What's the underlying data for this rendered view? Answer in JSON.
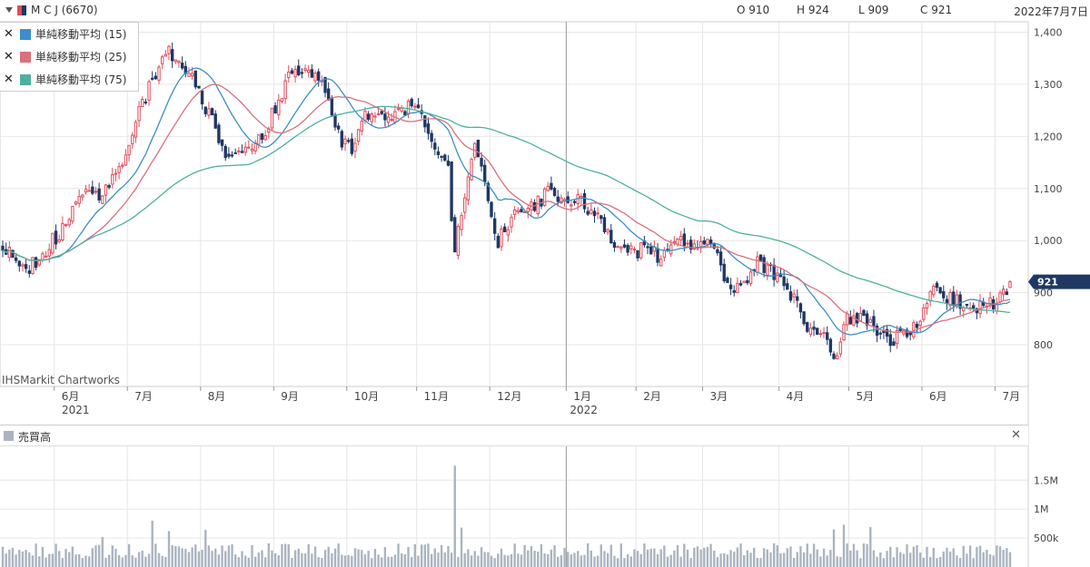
{
  "header": {
    "ticker": "M C J (6670)",
    "open": "O 910",
    "high": "H 924",
    "low": "L 909",
    "close": "C 921",
    "date": "2022年7月7日"
  },
  "legend": [
    {
      "label": "単純移動平均 (15)",
      "color": "#3d8ec9"
    },
    {
      "label": "単純移動平均 (25)",
      "color": "#d9707e"
    },
    {
      "label": "単純移動平均 (75)",
      "color": "#4fb0a0"
    }
  ],
  "watermark": "IHSMarkit Chartworks",
  "price_badge": "921",
  "volume_panel": {
    "title": "売買高",
    "close_icon": "✕"
  },
  "colors": {
    "up": "#e24d5a",
    "down": "#1f3864",
    "grid": "#e6e6e6",
    "badge": "#1f3864"
  },
  "chart_data": {
    "type": "candlestick",
    "price_axis": {
      "ylim": [
        720,
        1420
      ],
      "ticks": [
        800,
        900,
        1000,
        1100,
        1200,
        1300,
        1400
      ],
      "tick_labels": [
        "800",
        "900",
        "1,000",
        "1,100",
        "1,200",
        "1,300",
        "1,400"
      ]
    },
    "volume_axis": {
      "ylim": [
        0,
        2100000
      ],
      "ticks": [
        500000,
        1000000,
        1500000
      ],
      "tick_labels": [
        "500k",
        "1M",
        "1.5M"
      ]
    },
    "x_axis": {
      "months": [
        "6月",
        "7月",
        "8月",
        "9月",
        "10月",
        "11月",
        "12月",
        "1月",
        "2月",
        "3月",
        "4月",
        "5月",
        "6月",
        "7月"
      ],
      "years": [
        "2021",
        "2022"
      ],
      "start_date": "2021-05-10",
      "end_date": "2022-07-07"
    },
    "close_anchors": [
      [
        "2021-05-10",
        995
      ],
      [
        "2021-05-20",
        945
      ],
      [
        "2021-05-27",
        985
      ],
      [
        "2021-06-07",
        1040
      ],
      [
        "2021-06-14",
        1095
      ],
      [
        "2021-06-21",
        1085
      ],
      [
        "2021-06-28",
        1135
      ],
      [
        "2021-07-05",
        1230
      ],
      [
        "2021-07-12",
        1310
      ],
      [
        "2021-07-16",
        1370
      ],
      [
        "2021-07-22",
        1340
      ],
      [
        "2021-07-29",
        1300
      ],
      [
        "2021-08-05",
        1230
      ],
      [
        "2021-08-11",
        1160
      ],
      [
        "2021-08-18",
        1165
      ],
      [
        "2021-08-25",
        1190
      ],
      [
        "2021-08-31",
        1240
      ],
      [
        "2021-09-07",
        1310
      ],
      [
        "2021-09-14",
        1335
      ],
      [
        "2021-09-21",
        1295
      ],
      [
        "2021-09-28",
        1200
      ],
      [
        "2021-10-04",
        1170
      ],
      [
        "2021-10-08",
        1250
      ],
      [
        "2021-10-15",
        1235
      ],
      [
        "2021-10-22",
        1240
      ],
      [
        "2021-10-29",
        1270
      ],
      [
        "2021-11-02",
        1230
      ],
      [
        "2021-11-09",
        1165
      ],
      [
        "2021-11-12",
        1130
      ],
      [
        "2021-11-16",
        975
      ],
      [
        "2021-11-19",
        1090
      ],
      [
        "2021-11-24",
        1190
      ],
      [
        "2021-11-29",
        1100
      ],
      [
        "2021-12-03",
        1000
      ],
      [
        "2021-12-10",
        1050
      ],
      [
        "2021-12-17",
        1060
      ],
      [
        "2021-12-24",
        1095
      ],
      [
        "2021-12-30",
        1085
      ],
      [
        "2022-01-06",
        1080
      ],
      [
        "2022-01-13",
        1050
      ],
      [
        "2022-01-20",
        1005
      ],
      [
        "2022-01-27",
        975
      ],
      [
        "2022-02-03",
        985
      ],
      [
        "2022-02-10",
        970
      ],
      [
        "2022-02-17",
        1000
      ],
      [
        "2022-02-24",
        990
      ],
      [
        "2022-03-02",
        1010
      ],
      [
        "2022-03-09",
        935
      ],
      [
        "2022-03-16",
        900
      ],
      [
        "2022-03-23",
        960
      ],
      [
        "2022-03-30",
        940
      ],
      [
        "2022-04-06",
        900
      ],
      [
        "2022-04-13",
        840
      ],
      [
        "2022-04-20",
        815
      ],
      [
        "2022-04-25",
        760
      ],
      [
        "2022-04-28",
        850
      ],
      [
        "2022-05-06",
        860
      ],
      [
        "2022-05-12",
        820
      ],
      [
        "2022-05-19",
        810
      ],
      [
        "2022-05-26",
        830
      ],
      [
        "2022-06-02",
        870
      ],
      [
        "2022-06-06",
        905
      ],
      [
        "2022-06-13",
        890
      ],
      [
        "2022-06-20",
        870
      ],
      [
        "2022-06-27",
        880
      ],
      [
        "2022-07-01",
        885
      ],
      [
        "2022-07-05",
        900
      ],
      [
        "2022-07-07",
        921
      ]
    ],
    "volume_spikes": [
      [
        "2021-05-10",
        350000
      ],
      [
        "2021-06-21",
        520000
      ],
      [
        "2021-07-12",
        800000
      ],
      [
        "2021-07-19",
        620000
      ],
      [
        "2021-08-03",
        640000
      ],
      [
        "2021-11-16",
        1750000
      ],
      [
        "2021-11-18",
        680000
      ],
      [
        "2022-04-25",
        650000
      ],
      [
        "2022-04-28",
        730000
      ],
      [
        "2022-05-10",
        690000
      ]
    ],
    "last": {
      "open": 910,
      "high": 924,
      "low": 909,
      "close": 921
    },
    "series": [
      {
        "name": "単純移動平均 (15)",
        "period": 15,
        "color": "#3d8ec9"
      },
      {
        "name": "単純移動平均 (25)",
        "period": 25,
        "color": "#d9707e"
      },
      {
        "name": "単純移動平均 (75)",
        "period": 75,
        "color": "#4fb0a0"
      }
    ]
  }
}
